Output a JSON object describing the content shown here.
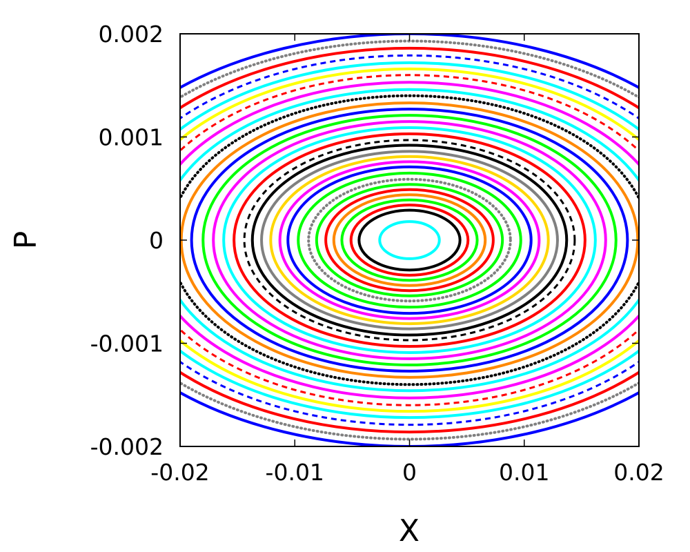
{
  "chart_data": {
    "type": "scatter",
    "title": "",
    "xlabel": "X",
    "ylabel": "P",
    "xlim": [
      -0.02,
      0.02
    ],
    "ylim": [
      -0.002,
      0.002
    ],
    "x_ticks": [
      -0.02,
      -0.01,
      0,
      0.01,
      0.02
    ],
    "y_ticks": [
      -0.002,
      -0.001,
      0,
      0.001,
      0.002
    ],
    "x_tick_labels": [
      "-0.02",
      "-0.01",
      "0",
      "0.01",
      "0.02"
    ],
    "y_tick_labels": [
      "-0.002",
      "-0.001",
      "0",
      "0.001",
      "0.002"
    ],
    "grid": false,
    "legend": "none",
    "series": [
      {
        "color": "#00ffff",
        "x_amplitude": 0.0026,
        "p_amplitude": 0.00018,
        "style": "solid"
      },
      {
        "color": "#000000",
        "x_amplitude": 0.0044,
        "p_amplitude": 0.00029,
        "style": "solid"
      },
      {
        "color": "#ff0000",
        "x_amplitude": 0.0051,
        "p_amplitude": 0.00034,
        "style": "solid"
      },
      {
        "color": "#00ff00",
        "x_amplitude": 0.0059,
        "p_amplitude": 0.00039,
        "style": "solid"
      },
      {
        "color": "#ff8800",
        "x_amplitude": 0.0066,
        "p_amplitude": 0.00044,
        "style": "solid"
      },
      {
        "color": "#ff0000",
        "x_amplitude": 0.0073,
        "p_amplitude": 0.00049,
        "style": "solid"
      },
      {
        "color": "#00ff00",
        "x_amplitude": 0.0081,
        "p_amplitude": 0.00054,
        "style": "solid"
      },
      {
        "color": "#808080",
        "x_amplitude": 0.0088,
        "p_amplitude": 0.00059,
        "style": "dotted"
      },
      {
        "color": "#00ff00",
        "x_amplitude": 0.0097,
        "p_amplitude": 0.00065,
        "style": "solid"
      },
      {
        "color": "#0000ff",
        "x_amplitude": 0.0106,
        "p_amplitude": 0.00071,
        "style": "solid"
      },
      {
        "color": "#ff00ff",
        "x_amplitude": 0.0113,
        "p_amplitude": 0.00076,
        "style": "solid"
      },
      {
        "color": "#ffd700",
        "x_amplitude": 0.0121,
        "p_amplitude": 0.00081,
        "style": "solid"
      },
      {
        "color": "#808080",
        "x_amplitude": 0.0129,
        "p_amplitude": 0.00086,
        "style": "solid"
      },
      {
        "color": "#000000",
        "x_amplitude": 0.0137,
        "p_amplitude": 0.00092,
        "style": "solid"
      },
      {
        "color": "#000000",
        "x_amplitude": 0.0144,
        "p_amplitude": 0.00097,
        "style": "dashed"
      },
      {
        "color": "#ff0000",
        "x_amplitude": 0.0153,
        "p_amplitude": 0.00103,
        "style": "solid"
      },
      {
        "color": "#00ffff",
        "x_amplitude": 0.0162,
        "p_amplitude": 0.00109,
        "style": "solid"
      },
      {
        "color": "#ff00ff",
        "x_amplitude": 0.0171,
        "p_amplitude": 0.00115,
        "style": "solid"
      },
      {
        "color": "#00ff00",
        "x_amplitude": 0.018,
        "p_amplitude": 0.00121,
        "style": "solid"
      },
      {
        "color": "#0000ff",
        "x_amplitude": 0.019,
        "p_amplitude": 0.00127,
        "style": "solid"
      },
      {
        "color": "#ff8800",
        "x_amplitude": 0.0199,
        "p_amplitude": 0.00133,
        "style": "solid"
      },
      {
        "color": "#000000",
        "x_amplitude": 0.0209,
        "p_amplitude": 0.0014,
        "style": "dotted"
      },
      {
        "color": "#00ffff",
        "x_amplitude": 0.0218,
        "p_amplitude": 0.00146,
        "style": "solid"
      },
      {
        "color": "#ff00ff",
        "x_amplitude": 0.0228,
        "p_amplitude": 0.00153,
        "style": "solid"
      },
      {
        "color": "#ff0000",
        "x_amplitude": 0.0238,
        "p_amplitude": 0.0016,
        "style": "dashed"
      },
      {
        "color": "#ffff00",
        "x_amplitude": 0.0247,
        "p_amplitude": 0.00166,
        "style": "solid"
      },
      {
        "color": "#00ffff",
        "x_amplitude": 0.0256,
        "p_amplitude": 0.00172,
        "style": "solid"
      },
      {
        "color": "#0000ff",
        "x_amplitude": 0.0266,
        "p_amplitude": 0.00179,
        "style": "dashed"
      },
      {
        "color": "#ff0000",
        "x_amplitude": 0.0276,
        "p_amplitude": 0.00186,
        "style": "solid"
      },
      {
        "color": "#808080",
        "x_amplitude": 0.0287,
        "p_amplitude": 0.00193,
        "style": "dotted"
      },
      {
        "color": "#0000ff",
        "x_amplitude": 0.0297,
        "p_amplitude": 0.002,
        "style": "solid"
      }
    ]
  }
}
